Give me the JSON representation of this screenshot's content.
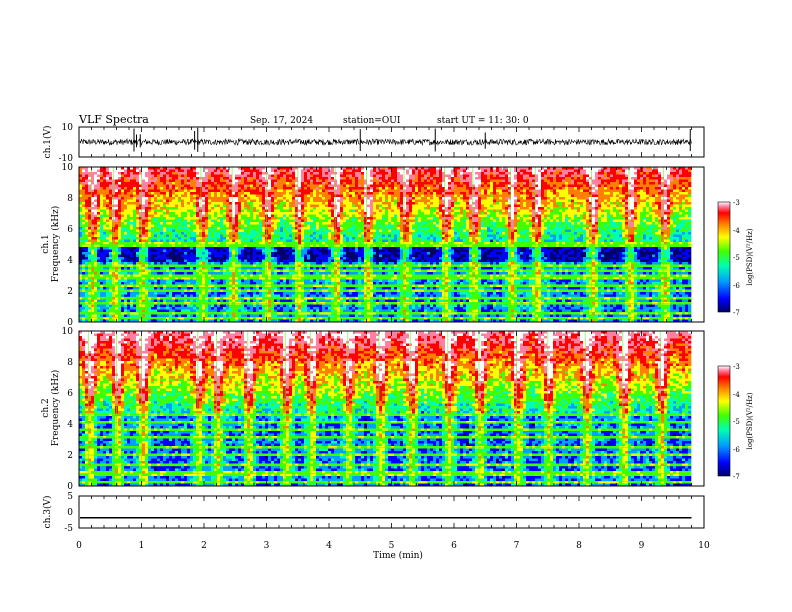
{
  "header": {
    "title": "VLF Spectra",
    "date": "Sep. 17, 2024",
    "station": "station=OUI",
    "start": "start UT =  11: 30: 0"
  },
  "chart_data": [
    {
      "type": "line",
      "name": "ch1-waveform",
      "ylabel": "ch.1(V)",
      "ylim": [
        -10,
        10
      ],
      "yticks": [
        "10",
        "-10"
      ],
      "x_extent_min": 9.8,
      "baseline_v": 0,
      "noise_amplitude_v": 2,
      "spikes_min": [
        0.88,
        0.92,
        0.98,
        1.85,
        1.9,
        4.5,
        5.7,
        6.5,
        9.78
      ]
    },
    {
      "type": "heatmap",
      "name": "ch1-spectrogram",
      "ylabel": "ch.1 Frequency (kHz)",
      "ylabel_lines": [
        "ch.1",
        "Frequency (kHz)"
      ],
      "ylim": [
        0,
        10
      ],
      "yticks": [
        "0",
        "2",
        "4",
        "6",
        "8",
        "10"
      ],
      "x_extent_min": 9.8,
      "colorbar": {
        "label": "log(PSD)(V²/Hz)",
        "range": [
          -7,
          -3
        ],
        "ticks": [
          "-3",
          "-4",
          "-5",
          "-6",
          "-7"
        ]
      },
      "dark_band_khz": [
        3.8,
        5.0
      ],
      "bright_lines_khz": [
        0.3,
        0.6,
        1.2,
        1.6,
        2.0,
        2.4,
        2.9,
        3.3,
        3.6,
        4.9,
        5.0
      ],
      "vertical_bursts_min": [
        0.2,
        0.55,
        1.0,
        1.95,
        2.45,
        3.0,
        3.5,
        4.1,
        4.6,
        5.2,
        5.85,
        6.3,
        6.9,
        7.3,
        8.2,
        8.8,
        9.35
      ]
    },
    {
      "type": "heatmap",
      "name": "ch2-spectrogram",
      "ylabel": "ch.2 Frequency (kHz)",
      "ylabel_lines": [
        "ch.2",
        "Frequency (kHz)"
      ],
      "ylim": [
        0,
        10
      ],
      "yticks": [
        "0",
        "2",
        "4",
        "6",
        "8",
        "10"
      ],
      "x_extent_min": 9.8,
      "colorbar": {
        "label": "log(PSD)(V²/Hz)",
        "range": [
          -7,
          -3
        ],
        "ticks": [
          "-3",
          "-4",
          "-5",
          "-6",
          "-7"
        ]
      },
      "bright_lines_khz": [
        0.3,
        0.8,
        1.3,
        2.0,
        2.5,
        3.1,
        3.6,
        4.1,
        4.6
      ],
      "vertical_bursts_min": [
        0.15,
        0.6,
        1.0,
        1.9,
        2.2,
        2.7,
        3.3,
        3.7,
        4.3,
        4.8,
        5.3,
        5.9,
        6.4,
        7.0,
        7.5,
        8.1,
        8.7,
        9.3
      ]
    },
    {
      "type": "line",
      "name": "ch3-waveform",
      "ylabel": "ch.3(V)",
      "ylim": [
        -5,
        5
      ],
      "yticks": [
        "5",
        "0",
        "-5"
      ],
      "x_extent_min": 9.8,
      "value_v": -1.8
    }
  ],
  "xaxis": {
    "label": "Time (min)",
    "range": [
      0,
      10
    ],
    "ticks": [
      "0",
      "1",
      "2",
      "3",
      "4",
      "5",
      "6",
      "7",
      "8",
      "9",
      "10"
    ]
  },
  "colors": {
    "line": "#000000",
    "spectrogram_scale": [
      "#00006a",
      "#0000ff",
      "#00a0ff",
      "#00ffb0",
      "#40ff00",
      "#ffff00",
      "#ff8000",
      "#ff0000",
      "#ff80a0",
      "#ffffff"
    ]
  }
}
